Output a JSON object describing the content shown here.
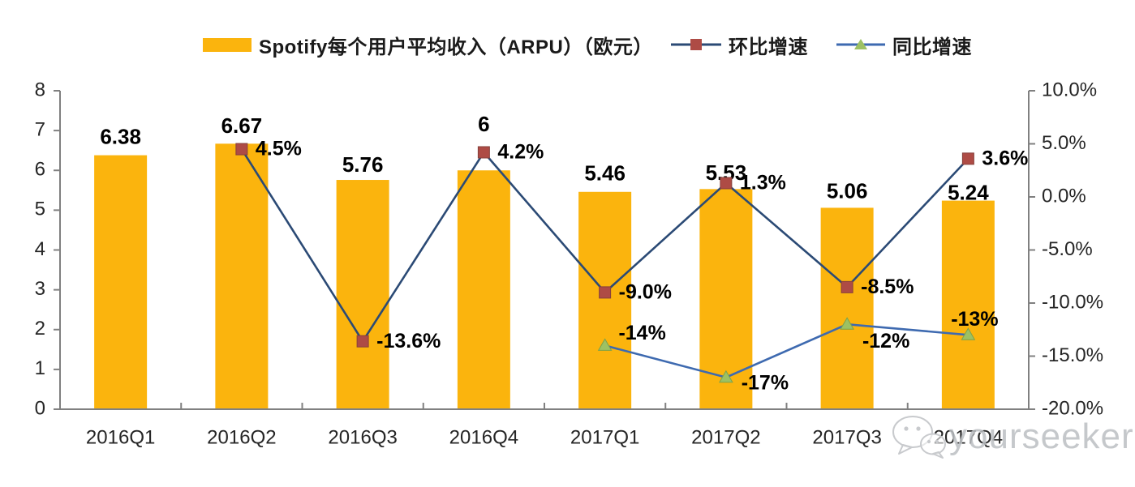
{
  "legend": {
    "bar": {
      "label": "Spotify每个用户平均收入（ARPU）（欧元）",
      "color": "#FBB40D"
    },
    "qoq": {
      "label": "环比增速",
      "line_color": "#2B4A75",
      "marker_color": "#AE4B45"
    },
    "yoy": {
      "label": "同比增速",
      "line_color": "#3E6AB0",
      "marker_color": "#9DC163"
    }
  },
  "watermark": {
    "text": "yourseeker"
  },
  "chart_data": {
    "type": "combo-bar-line",
    "title": "",
    "categories": [
      "2016Q1",
      "2016Q2",
      "2016Q3",
      "2016Q4",
      "2017Q1",
      "2017Q2",
      "2017Q3",
      "2017Q4"
    ],
    "bar_series": {
      "name": "Spotify每个用户平均收入（ARPU）（欧元）",
      "axis": "left",
      "color": "#FBB40D",
      "values": [
        6.38,
        6.67,
        5.76,
        6,
        5.46,
        5.53,
        5.06,
        5.24
      ],
      "labels": [
        "6.38",
        "6.67",
        "5.76",
        "6",
        "5.46",
        "5.53",
        "5.06",
        "5.24"
      ]
    },
    "line_series": [
      {
        "name": "环比增速",
        "axis": "right",
        "marker": "square",
        "line_color": "#2B4A75",
        "marker_color": "#AE4B45",
        "marker_stroke": "#86403B",
        "values": [
          null,
          4.5,
          -13.6,
          4.2,
          -9.0,
          1.3,
          -8.5,
          3.6
        ],
        "labels": [
          null,
          "4.5%",
          "-13.6%",
          "4.2%",
          "-9.0%",
          "1.3%",
          "-8.5%",
          "3.6%"
        ]
      },
      {
        "name": "同比增速",
        "axis": "right",
        "marker": "triangle",
        "line_color": "#3E6AB0",
        "marker_color": "#9DC163",
        "marker_stroke": "#7DA24A",
        "values": [
          null,
          null,
          null,
          null,
          -14,
          -17,
          -12,
          -13
        ],
        "labels": [
          null,
          null,
          null,
          null,
          "-14%",
          "-17%",
          "-12%",
          "-13%"
        ]
      }
    ],
    "left_axis": {
      "min": 0,
      "max": 8,
      "step": 1,
      "tick_labels": [
        "0",
        "1",
        "2",
        "3",
        "4",
        "5",
        "6",
        "7",
        "8"
      ]
    },
    "right_axis": {
      "min": -20,
      "max": 10,
      "step": 5,
      "tick_labels_top_down": [
        "10.0%",
        "5.0%",
        "0.0%",
        "-5.0%",
        "-10.0%",
        "-15.0%",
        "-20.0%"
      ]
    },
    "grid": false,
    "legend_position": "top"
  }
}
